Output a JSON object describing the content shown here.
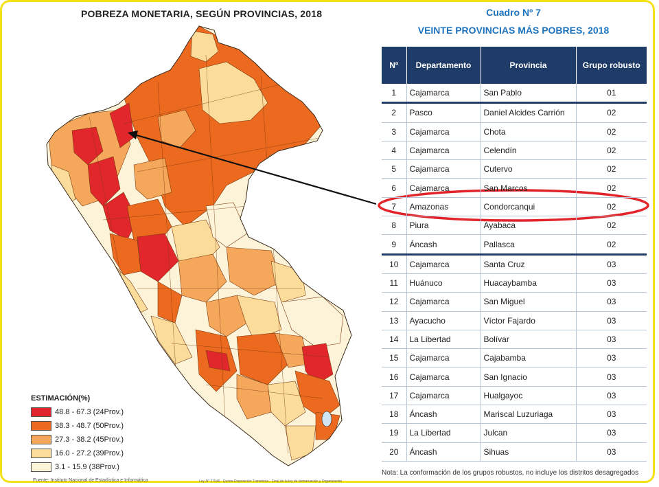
{
  "map": {
    "title": "POBREZA MONETARIA, SEGÚN PROVINCIAS, 2018",
    "legend_title": "ESTIMACIÓN(%)",
    "legend": [
      {
        "label": "48.8 - 67.3 (24Prov.)",
        "color": "#e1272b"
      },
      {
        "label": "38.3 - 48.7 (50Prov.)",
        "color": "#ec6a1f"
      },
      {
        "label": "27.3 - 38.2 (45Prov.)",
        "color": "#f5a85b"
      },
      {
        "label": "16.0 - 27.2 (39Prov.)",
        "color": "#fbdc9a"
      },
      {
        "label": "3.1 - 15.9 (38Prov.)",
        "color": "#fdf3d8"
      }
    ],
    "source": "Fuente: Instituto Nacional de Estadística e Informática",
    "source_small": "Ley N° 27546 - Quinta Disposición Transitoria - Final de la ley de demarcación y Organización"
  },
  "table": {
    "cuadro": "Cuadro Nº 7",
    "title": "VEINTE PROVINCIAS MÁS POBRES, 2018",
    "headers": [
      "Nº",
      "Departamento",
      "Provincia",
      "Grupo robusto"
    ],
    "rows": [
      {
        "n": "1",
        "dep": "Cajamarca",
        "prov": "San Pablo",
        "grupo": "01"
      },
      {
        "n": "2",
        "dep": "Pasco",
        "prov": "Daniel Alcides Carrión",
        "grupo": "02"
      },
      {
        "n": "3",
        "dep": "Cajamarca",
        "prov": "Chota",
        "grupo": "02"
      },
      {
        "n": "4",
        "dep": "Cajamarca",
        "prov": "Celendín",
        "grupo": "02"
      },
      {
        "n": "5",
        "dep": "Cajamarca",
        "prov": "Cutervo",
        "grupo": "02"
      },
      {
        "n": "6",
        "dep": "Cajamarca",
        "prov": "San Marcos",
        "grupo": "02"
      },
      {
        "n": "7",
        "dep": "Amazonas",
        "prov": "Condorcanqui",
        "grupo": "02"
      },
      {
        "n": "8",
        "dep": "Piura",
        "prov": "Ayabaca",
        "grupo": "02"
      },
      {
        "n": "9",
        "dep": "Áncash",
        "prov": "Pallasca",
        "grupo": "02"
      },
      {
        "n": "10",
        "dep": "Cajamarca",
        "prov": "Santa Cruz",
        "grupo": "03"
      },
      {
        "n": "11",
        "dep": "Huánuco",
        "prov": "Huacaybamba",
        "grupo": "03"
      },
      {
        "n": "12",
        "dep": "Cajamarca",
        "prov": "San Miguel",
        "grupo": "03"
      },
      {
        "n": "13",
        "dep": "Ayacucho",
        "prov": "Víctor Fajardo",
        "grupo": "03"
      },
      {
        "n": "14",
        "dep": "La Libertad",
        "prov": "Bolívar",
        "grupo": "03"
      },
      {
        "n": "15",
        "dep": "Cajamarca",
        "prov": "Cajabamba",
        "grupo": "03"
      },
      {
        "n": "16",
        "dep": "Cajamarca",
        "prov": "San Ignacio",
        "grupo": "03"
      },
      {
        "n": "17",
        "dep": "Cajamarca",
        "prov": "Hualgayoc",
        "grupo": "03"
      },
      {
        "n": "18",
        "dep": "Áncash",
        "prov": "Mariscal Luzuriaga",
        "grupo": "03"
      },
      {
        "n": "19",
        "dep": "La Libertad",
        "prov": "Julcan",
        "grupo": "03"
      },
      {
        "n": "20",
        "dep": "Áncash",
        "prov": "Sihuas",
        "grupo": "03"
      }
    ],
    "note": "Nota: La conformación de los grupos robustos, no incluye los distritos desagregados",
    "highlight_color": "#e0242a",
    "header_color": "#1f3b67"
  }
}
